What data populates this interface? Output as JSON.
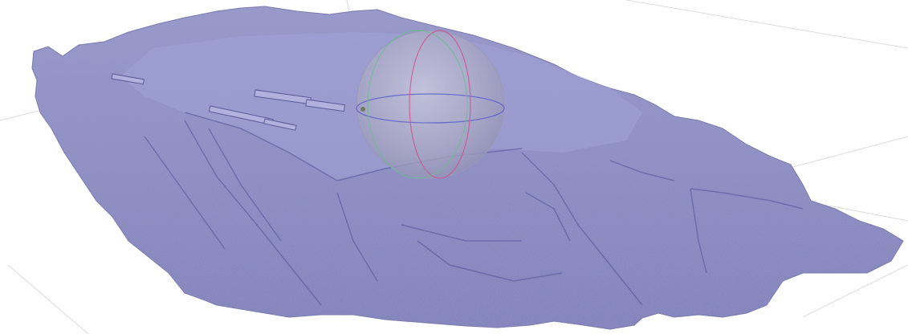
{
  "viewer": {
    "background_color": "#ffffff",
    "grid_color": "#d9d9d9",
    "mesh": {
      "name": "terrain-mesh",
      "fill_color": "#8b8cc6",
      "shade_color": "#6d6ea8",
      "highlight_color": "#a9aad8"
    },
    "trackball": {
      "sphere_color": "#b3b3c6",
      "x_axis_color": "#d0508a",
      "y_axis_color": "#5a5ad0",
      "z_axis_color": "#66c08a"
    }
  }
}
